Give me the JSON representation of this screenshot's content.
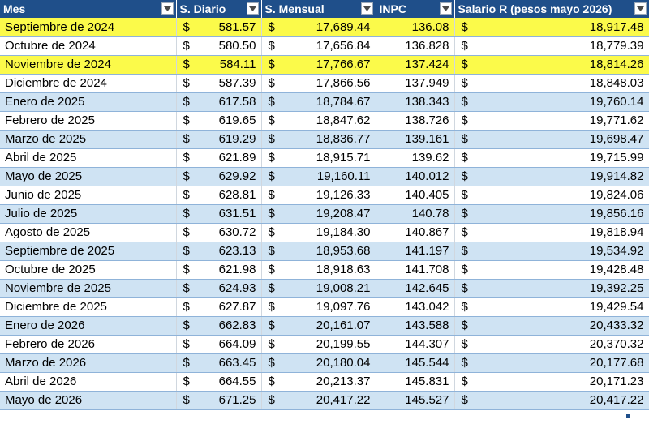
{
  "header": {
    "mes": "Mes",
    "s_diario": "S. Diario",
    "s_mensual": "S. Mensual",
    "inpc": "INPC",
    "salario_r": "Salario R (pesos mayo 2026)"
  },
  "currency_symbol": "$",
  "colors": {
    "header_bg": "#1f4f8a",
    "band_blue": "#cfe3f3",
    "highlight_yellow": "#fbfa4a"
  },
  "rows": [
    {
      "mes": "Septiembre de 2024",
      "s_diario": "581.57",
      "s_mensual": "17,689.44",
      "inpc": "136.08",
      "salario_r": "18,917.48",
      "band": "yellow"
    },
    {
      "mes": "Octubre de 2024",
      "s_diario": "580.50",
      "s_mensual": "17,656.84",
      "inpc": "136.828",
      "salario_r": "18,779.39",
      "band": "white"
    },
    {
      "mes": "Noviembre de 2024",
      "s_diario": "584.11",
      "s_mensual": "17,766.67",
      "inpc": "137.424",
      "salario_r": "18,814.26",
      "band": "yellow"
    },
    {
      "mes": "Diciembre de 2024",
      "s_diario": "587.39",
      "s_mensual": "17,866.56",
      "inpc": "137.949",
      "salario_r": "18,848.03",
      "band": "white"
    },
    {
      "mes": "Enero de 2025",
      "s_diario": "617.58",
      "s_mensual": "18,784.67",
      "inpc": "138.343",
      "salario_r": "19,760.14",
      "band": "blue"
    },
    {
      "mes": "Febrero de 2025",
      "s_diario": "619.65",
      "s_mensual": "18,847.62",
      "inpc": "138.726",
      "salario_r": "19,771.62",
      "band": "white"
    },
    {
      "mes": "Marzo de 2025",
      "s_diario": "619.29",
      "s_mensual": "18,836.77",
      "inpc": "139.161",
      "salario_r": "19,698.47",
      "band": "blue"
    },
    {
      "mes": "Abril de 2025",
      "s_diario": "621.89",
      "s_mensual": "18,915.71",
      "inpc": "139.62",
      "salario_r": "19,715.99",
      "band": "white"
    },
    {
      "mes": "Mayo de 2025",
      "s_diario": "629.92",
      "s_mensual": "19,160.11",
      "inpc": "140.012",
      "salario_r": "19,914.82",
      "band": "blue"
    },
    {
      "mes": "Junio de 2025",
      "s_diario": "628.81",
      "s_mensual": "19,126.33",
      "inpc": "140.405",
      "salario_r": "19,824.06",
      "band": "white"
    },
    {
      "mes": "Julio de 2025",
      "s_diario": "631.51",
      "s_mensual": "19,208.47",
      "inpc": "140.78",
      "salario_r": "19,856.16",
      "band": "blue"
    },
    {
      "mes": "Agosto de 2025",
      "s_diario": "630.72",
      "s_mensual": "19,184.30",
      "inpc": "140.867",
      "salario_r": "19,818.94",
      "band": "white"
    },
    {
      "mes": "Septiembre de 2025",
      "s_diario": "623.13",
      "s_mensual": "18,953.68",
      "inpc": "141.197",
      "salario_r": "19,534.92",
      "band": "blue"
    },
    {
      "mes": "Octubre de 2025",
      "s_diario": "621.98",
      "s_mensual": "18,918.63",
      "inpc": "141.708",
      "salario_r": "19,428.48",
      "band": "white"
    },
    {
      "mes": "Noviembre de 2025",
      "s_diario": "624.93",
      "s_mensual": "19,008.21",
      "inpc": "142.645",
      "salario_r": "19,392.25",
      "band": "blue"
    },
    {
      "mes": "Diciembre de 2025",
      "s_diario": "627.87",
      "s_mensual": "19,097.76",
      "inpc": "143.042",
      "salario_r": "19,429.54",
      "band": "white"
    },
    {
      "mes": "Enero de 2026",
      "s_diario": "662.83",
      "s_mensual": "20,161.07",
      "inpc": "143.588",
      "salario_r": "20,433.32",
      "band": "blue"
    },
    {
      "mes": "Febrero de 2026",
      "s_diario": "664.09",
      "s_mensual": "20,199.55",
      "inpc": "144.307",
      "salario_r": "20,370.32",
      "band": "white"
    },
    {
      "mes": "Marzo de 2026",
      "s_diario": "663.45",
      "s_mensual": "20,180.04",
      "inpc": "145.544",
      "salario_r": "20,177.68",
      "band": "blue"
    },
    {
      "mes": "Abril de 2026",
      "s_diario": "664.55",
      "s_mensual": "20,213.37",
      "inpc": "145.831",
      "salario_r": "20,171.23",
      "band": "white"
    },
    {
      "mes": "Mayo de 2026",
      "s_diario": "671.25",
      "s_mensual": "20,417.22",
      "inpc": "145.527",
      "salario_r": "20,417.22",
      "band": "blue"
    }
  ]
}
